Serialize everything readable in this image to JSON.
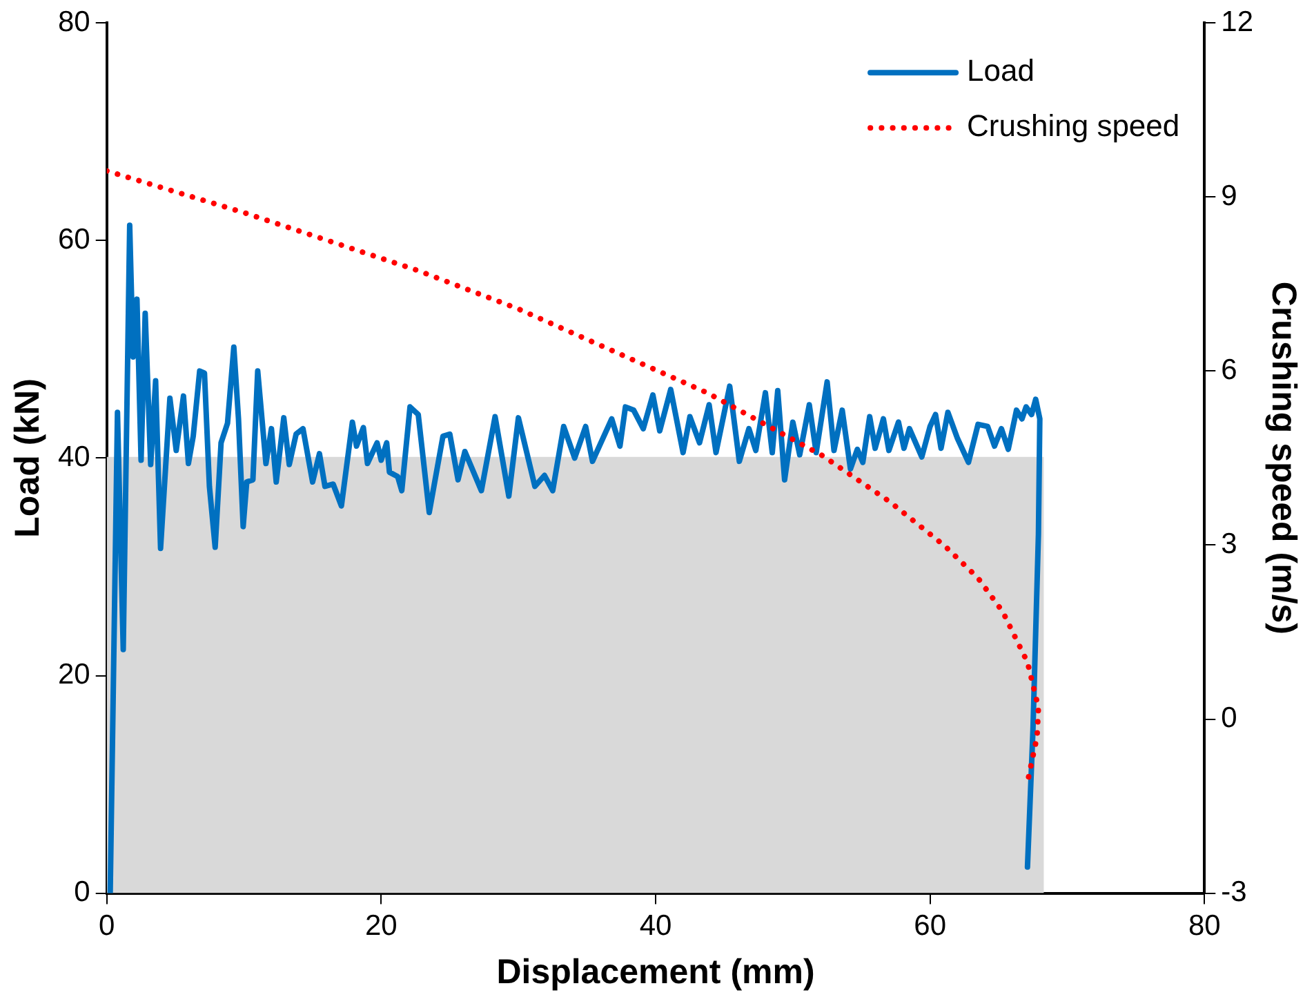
{
  "chart_data": {
    "type": "line",
    "xlabel": "Displacement (mm)",
    "ylabel": "Load (kN)",
    "y2label": "Crushing speed (m/s)",
    "xlim": [
      0,
      80
    ],
    "xticks": [
      0,
      20,
      40,
      60,
      80
    ],
    "ylim": [
      0,
      80
    ],
    "yticks": [
      0,
      20,
      40,
      60,
      80
    ],
    "y2lim": [
      -3,
      12
    ],
    "y2ticks": [
      -3,
      0,
      3,
      6,
      9,
      12
    ],
    "grid": false,
    "legend": "top right",
    "marker": "none",
    "series": [
      {
        "type": "area",
        "color": "#d9d9d9",
        "x": [
          0,
          68.3
        ],
        "values": [
          40.1,
          40.1
        ]
      },
      {
        "name": "Load",
        "color": "#0070c0",
        "line_style": "solid",
        "x": [
          0.25,
          0.78,
          1.2,
          1.67,
          1.92,
          2.2,
          2.5,
          2.8,
          3.2,
          3.56,
          3.92,
          4.6,
          5.06,
          5.59,
          5.95,
          6.3,
          6.77,
          7.12,
          7.48,
          7.9,
          8.33,
          8.8,
          9.26,
          9.6,
          9.94,
          10.2,
          10.65,
          11.0,
          11.6,
          12.0,
          12.35,
          12.9,
          13.3,
          13.8,
          14.3,
          15.0,
          15.5,
          15.9,
          16.5,
          17.1,
          17.9,
          18.2,
          18.7,
          19.0,
          19.7,
          20.0,
          20.4,
          20.6,
          21.2,
          21.5,
          22.1,
          22.7,
          23.5,
          24.5,
          25.0,
          25.6,
          26.1,
          27.3,
          28.3,
          29.3,
          30.0,
          31.2,
          31.9,
          32.5,
          33.3,
          34.1,
          34.9,
          35.4,
          36.8,
          37.4,
          37.8,
          38.4,
          39.1,
          39.8,
          40.3,
          41.1,
          42.0,
          42.5,
          43.2,
          43.9,
          44.4,
          45.4,
          46.1,
          46.8,
          47.3,
          48.0,
          48.5,
          48.9,
          49.4,
          50.0,
          50.5,
          51.2,
          51.7,
          52.5,
          53.0,
          53.6,
          54.2,
          54.7,
          55.1,
          55.6,
          56.0,
          56.6,
          57.0,
          57.7,
          58.1,
          58.5,
          59.4,
          60.0,
          60.4,
          60.8,
          61.3,
          62.0,
          62.8,
          63.5,
          64.2,
          64.7,
          65.2,
          65.7,
          66.3,
          66.7,
          67.0,
          67.4,
          67.7,
          68.0,
          67.9,
          67.5,
          67.1
        ],
        "values": [
          0,
          44.2,
          22.4,
          61.4,
          49.3,
          54.6,
          39.8,
          53.3,
          39.4,
          47.1,
          31.7,
          45.5,
          40.7,
          45.7,
          39.5,
          42,
          48,
          47.8,
          37.4,
          31.8,
          41.4,
          43.2,
          50.2,
          43.6,
          33.7,
          37.8,
          38,
          48,
          39.5,
          42.7,
          37.8,
          43.7,
          39.4,
          42.2,
          42.7,
          37.8,
          40.4,
          37.4,
          37.6,
          35.6,
          43.3,
          41.1,
          42.8,
          39.5,
          41.4,
          39.8,
          41.4,
          38.7,
          38.3,
          37,
          44.7,
          44,
          35,
          42,
          42.2,
          38,
          40.6,
          37,
          43.8,
          36.5,
          43.7,
          37.4,
          38.4,
          37,
          42.9,
          40,
          42.9,
          39.7,
          43.6,
          41.1,
          44.7,
          44.4,
          42.7,
          45.8,
          42.5,
          46.3,
          40.5,
          43.8,
          41.4,
          44.9,
          40.5,
          46.6,
          39.7,
          42.7,
          40.7,
          46,
          40.5,
          46.2,
          38,
          43.3,
          40.3,
          44.9,
          40.5,
          47,
          40.7,
          44.4,
          39,
          40.8,
          39.6,
          43.8,
          40.9,
          43.6,
          40.7,
          43.3,
          40.9,
          42.7,
          40.1,
          42.9,
          44,
          40.9,
          44.2,
          41.8,
          39.6,
          43.1,
          42.9,
          41.1,
          42.7,
          40.8,
          44.4,
          43.6,
          44.7,
          44,
          45.4,
          43.6,
          33,
          15,
          2.4
        ]
      },
      {
        "name": "Crushing speed",
        "color": "#ff0000",
        "line_style": "dotted",
        "axis": "y2",
        "x": [
          0,
          10,
          22.7,
          30,
          43.8,
          52.1,
          57.05,
          61.1,
          63.5,
          65.3,
          67.1,
          67.9,
          67.8,
          67.1
        ],
        "values": [
          9.45,
          8.73,
          7.73,
          7.07,
          5.62,
          4.55,
          3.75,
          2.98,
          2.43,
          1.85,
          0.98,
          0.2,
          -0.3,
          -1.09
        ]
      }
    ]
  }
}
